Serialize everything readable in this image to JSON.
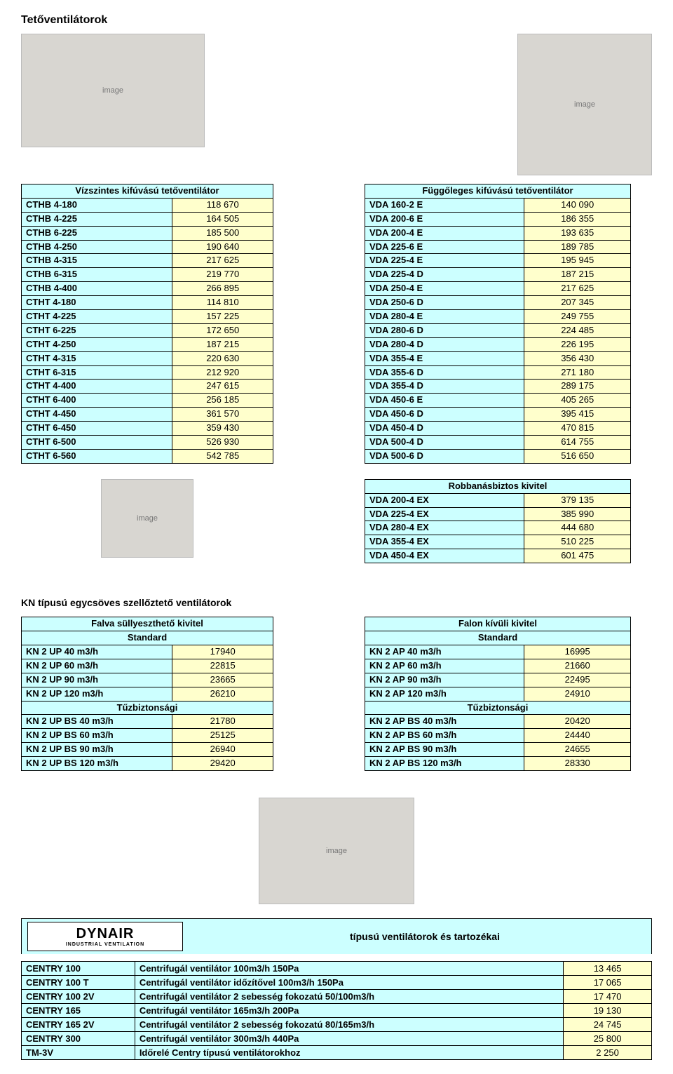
{
  "page_title": "Tetőventilátorok",
  "table_left": {
    "header": "Vízszintes kifúvású tetőventilátor",
    "rows": [
      [
        "CTHB 4-180",
        "118 670"
      ],
      [
        "CTHB 4-225",
        "164 505"
      ],
      [
        "CTHB 6-225",
        "185 500"
      ],
      [
        "CTHB 4-250",
        "190 640"
      ],
      [
        "CTHB 4-315",
        "217 625"
      ],
      [
        "CTHB 6-315",
        "219 770"
      ],
      [
        "CTHB 4-400",
        "266 895"
      ],
      [
        "CTHT 4-180",
        "114 810"
      ],
      [
        "CTHT 4-225",
        "157 225"
      ],
      [
        "CTHT 6-225",
        "172 650"
      ],
      [
        "CTHT 4-250",
        "187 215"
      ],
      [
        "CTHT 4-315",
        "220 630"
      ],
      [
        "CTHT 6-315",
        "212 920"
      ],
      [
        "CTHT 4-400",
        "247 615"
      ],
      [
        "CTHT 6-400",
        "256 185"
      ],
      [
        "CTHT 4-450",
        "361 570"
      ],
      [
        "CTHT 6-450",
        "359 430"
      ],
      [
        "CTHT 6-500",
        "526 930"
      ],
      [
        "CTHT 6-560",
        "542 785"
      ]
    ]
  },
  "table_right": {
    "header": "Függőleges kifúvású tetőventilátor",
    "rows": [
      [
        "VDA 160-2 E",
        "140 090"
      ],
      [
        "VDA 200-6 E",
        "186 355"
      ],
      [
        "VDA 200-4 E",
        "193 635"
      ],
      [
        "VDA 225-6 E",
        "189 785"
      ],
      [
        "VDA 225-4 E",
        "195 945"
      ],
      [
        "VDA 225-4 D",
        "187 215"
      ],
      [
        "VDA 250-4 E",
        "217 625"
      ],
      [
        "VDA 250-6 D",
        "207 345"
      ],
      [
        "VDA 280-4 E",
        "249 755"
      ],
      [
        "VDA 280-6 D",
        "224 485"
      ],
      [
        "VDA 280-4 D",
        "226 195"
      ],
      [
        "VDA 355-4 E",
        "356 430"
      ],
      [
        "VDA 355-6 D",
        "271 180"
      ],
      [
        "VDA 355-4 D",
        "289 175"
      ],
      [
        "VDA 450-6 E",
        "405 265"
      ],
      [
        "VDA 450-6 D",
        "395 415"
      ],
      [
        "VDA 450-4 D",
        "470 815"
      ],
      [
        "VDA 500-4 D",
        "614 755"
      ],
      [
        "VDA 500-6 D",
        "516 650"
      ]
    ]
  },
  "table_ex": {
    "header": "Robbanásbiztos kivitel",
    "rows": [
      [
        "VDA 200-4 EX",
        "379 135"
      ],
      [
        "VDA 225-4 EX",
        "385 990"
      ],
      [
        "VDA 280-4 EX",
        "444 680"
      ],
      [
        "VDA 355-4 EX",
        "510 225"
      ],
      [
        "VDA 450-4 EX",
        "601 475"
      ]
    ]
  },
  "section_kn": "KN típusú egycsöves szellőztető ventilátorok",
  "kn_left": {
    "h1": "Falva süllyeszthető kivitel",
    "h2": "Standard",
    "rows1": [
      [
        "KN 2 UP   40 m3/h",
        "17940"
      ],
      [
        "KN 2 UP   60 m3/h",
        "22815"
      ],
      [
        "KN 2 UP   90 m3/h",
        "23665"
      ],
      [
        "KN 2 UP 120 m3/h",
        "26210"
      ]
    ],
    "h3": "Tűzbiztonsági",
    "rows2": [
      [
        "KN 2 UP BS   40 m3/h",
        "21780"
      ],
      [
        "KN 2 UP BS   60 m3/h",
        "25125"
      ],
      [
        "KN 2 UP BS   90 m3/h",
        "26940"
      ],
      [
        "KN 2 UP BS 120 m3/h",
        "29420"
      ]
    ]
  },
  "kn_right": {
    "h1": "Falon kívüli kivitel",
    "h2": "Standard",
    "rows1": [
      [
        "KN 2 AP   40 m3/h",
        "16995"
      ],
      [
        "KN 2 AP   60 m3/h",
        "21660"
      ],
      [
        "KN 2 AP   90 m3/h",
        "22495"
      ],
      [
        "KN 2 AP 120 m3/h",
        "24910"
      ]
    ],
    "h3": "Tűzbiztonsági",
    "rows2": [
      [
        "KN 2 AP BS   40 m3/h",
        "20420"
      ],
      [
        "KN 2 AP BS   60 m3/h",
        "24440"
      ],
      [
        "KN 2 AP BS   90 m3/h",
        "24655"
      ],
      [
        "KN 2 AP BS 120 m3/h",
        "28330"
      ]
    ]
  },
  "dynair": {
    "brand_big": "DYNAIR",
    "brand_small": "INDUSTRIAL VENTILATION",
    "title": "típusú ventilátorok és tartozékai",
    "rows": [
      [
        "CENTRY 100",
        "Centrifugál ventilátor 100m3/h  150Pa",
        "13 465"
      ],
      [
        "CENTRY 100 T",
        "Centrifugál ventilátor időzítővel 100m3/h 150Pa",
        "17 065"
      ],
      [
        "CENTRY 100 2V",
        "Centrifugál ventilátor  2 sebesség fokozatú  50/100m3/h",
        "17 470"
      ],
      [
        "CENTRY 165",
        "Centrifugál ventilátor 165m3/h  200Pa",
        "19 130"
      ],
      [
        "CENTRY 165 2V",
        "Centrifugál ventilátor 2 sebesség fokozatú  80/165m3/h",
        "24 745"
      ],
      [
        "CENTRY 300",
        "Centrifugál ventilátor 300m3/h  440Pa",
        "25 800"
      ],
      [
        "TM-3V",
        "Időrelé Centry típusú ventilátorokhoz",
        "2 250"
      ]
    ]
  }
}
